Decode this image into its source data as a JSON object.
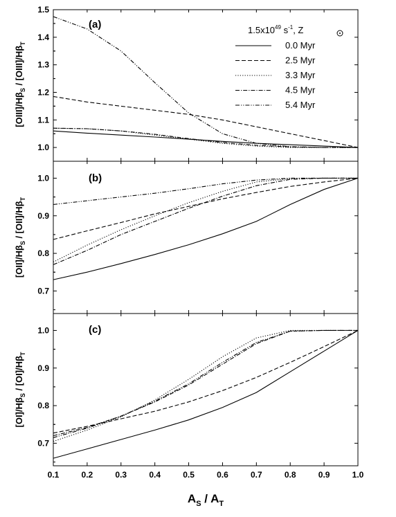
{
  "chart_data": [
    {
      "type": "line",
      "panel_label": "(a)",
      "ylabel": "[OIII]/Hβ_S / [OIII]/Hβ_T",
      "ylim": [
        0.95,
        1.5
      ],
      "yticks": [
        "1.0",
        "1.1",
        "1.2",
        "1.3",
        "1.4",
        "1.5"
      ],
      "legend": {
        "title_plain": "1.5x10^49 s^-1, Z⊙",
        "title_main": "1.5x10",
        "title_exp1": "49",
        "title_s": " s",
        "title_exp2": "-1",
        "title_z": ",  Z",
        "placement": "top-right"
      },
      "series": [
        {
          "name": "0.0 Myr",
          "dash": "solid",
          "x": [
            0.1,
            0.2,
            0.3,
            0.4,
            0.5,
            0.6,
            0.7,
            0.8,
            0.9,
            1.0
          ],
          "y": [
            1.06,
            1.052,
            1.045,
            1.038,
            1.03,
            1.022,
            1.015,
            1.01,
            1.005,
            1.0
          ]
        },
        {
          "name": "2.5 Myr",
          "dash": "dash",
          "x": [
            0.1,
            0.2,
            0.3,
            0.4,
            0.5,
            0.6,
            0.7,
            0.8,
            0.9,
            1.0
          ],
          "y": [
            1.185,
            1.165,
            1.15,
            1.135,
            1.12,
            1.1,
            1.075,
            1.05,
            1.025,
            1.0
          ]
        },
        {
          "name": "3.3 Myr",
          "dash": "dot",
          "x": [
            0.1,
            0.2,
            0.3,
            0.4,
            0.5,
            0.6,
            0.7,
            0.8,
            0.9,
            1.0
          ],
          "y": [
            1.07,
            1.068,
            1.06,
            1.045,
            1.03,
            1.015,
            1.005,
            1.0,
            1.0,
            1.0
          ]
        },
        {
          "name": "4.5 Myr",
          "dash": "dashdot",
          "x": [
            0.1,
            0.2,
            0.3,
            0.4,
            0.5,
            0.6,
            0.7,
            0.8,
            0.9,
            1.0
          ],
          "y": [
            1.07,
            1.068,
            1.06,
            1.048,
            1.032,
            1.018,
            1.008,
            1.002,
            1.0,
            1.0
          ]
        },
        {
          "name": "5.4 Myr",
          "dash": "dashdotdot",
          "x": [
            0.1,
            0.2,
            0.3,
            0.4,
            0.5,
            0.6,
            0.7,
            0.8,
            0.9,
            1.0
          ],
          "y": [
            1.475,
            1.43,
            1.35,
            1.235,
            1.125,
            1.05,
            1.015,
            1.003,
            1.0,
            1.0
          ]
        }
      ]
    },
    {
      "type": "line",
      "panel_label": "(b)",
      "ylabel": "[OII]/Hβ_S / [OII]/Hβ_T",
      "ylim": [
        0.64,
        1.045
      ],
      "yticks": [
        "0.7",
        "0.8",
        "0.9",
        "1.0"
      ],
      "series": [
        {
          "name": "0.0 Myr",
          "dash": "solid",
          "x": [
            0.1,
            0.2,
            0.3,
            0.4,
            0.5,
            0.6,
            0.7,
            0.8,
            0.9,
            1.0
          ],
          "y": [
            0.73,
            0.75,
            0.773,
            0.797,
            0.823,
            0.852,
            0.885,
            0.93,
            0.97,
            1.0
          ]
        },
        {
          "name": "2.5 Myr",
          "dash": "dash",
          "x": [
            0.1,
            0.2,
            0.3,
            0.4,
            0.5,
            0.6,
            0.7,
            0.8,
            0.9,
            1.0
          ],
          "y": [
            0.837,
            0.86,
            0.882,
            0.905,
            0.925,
            0.945,
            0.962,
            0.978,
            0.99,
            1.0
          ]
        },
        {
          "name": "3.3 Myr",
          "dash": "dot",
          "x": [
            0.1,
            0.2,
            0.3,
            0.4,
            0.5,
            0.6,
            0.7,
            0.8,
            0.9,
            1.0
          ],
          "y": [
            0.777,
            0.822,
            0.863,
            0.9,
            0.935,
            0.965,
            0.99,
            0.999,
            1.0,
            1.0
          ]
        },
        {
          "name": "4.5 Myr",
          "dash": "dashdot",
          "x": [
            0.1,
            0.2,
            0.3,
            0.4,
            0.5,
            0.6,
            0.7,
            0.8,
            0.9,
            1.0
          ],
          "y": [
            0.77,
            0.808,
            0.85,
            0.885,
            0.92,
            0.952,
            0.98,
            0.997,
            1.0,
            1.0
          ]
        },
        {
          "name": "5.4 Myr",
          "dash": "dashdotdot",
          "x": [
            0.1,
            0.2,
            0.3,
            0.4,
            0.5,
            0.6,
            0.7,
            0.8,
            0.9,
            1.0
          ],
          "y": [
            0.93,
            0.94,
            0.95,
            0.96,
            0.972,
            0.985,
            0.995,
            1.0,
            1.0,
            1.0
          ]
        }
      ]
    },
    {
      "type": "line",
      "panel_label": "(c)",
      "ylabel": "[OI]/Hβ_S / [OI]/Hβ_T",
      "ylim": [
        0.64,
        1.045
      ],
      "yticks": [
        "0.7",
        "0.8",
        "0.9",
        "1.0"
      ],
      "series": [
        {
          "name": "0.0 Myr",
          "dash": "solid",
          "x": [
            0.1,
            0.2,
            0.3,
            0.4,
            0.5,
            0.6,
            0.7,
            0.8,
            0.9,
            1.0
          ],
          "y": [
            0.66,
            0.685,
            0.71,
            0.735,
            0.762,
            0.795,
            0.835,
            0.89,
            0.945,
            1.0
          ]
        },
        {
          "name": "2.5 Myr",
          "dash": "dash",
          "x": [
            0.1,
            0.2,
            0.3,
            0.4,
            0.5,
            0.6,
            0.7,
            0.8,
            0.9,
            1.0
          ],
          "y": [
            0.727,
            0.745,
            0.765,
            0.785,
            0.81,
            0.84,
            0.875,
            0.915,
            0.957,
            1.0
          ]
        },
        {
          "name": "3.3 Myr",
          "dash": "dot",
          "x": [
            0.1,
            0.2,
            0.3,
            0.4,
            0.5,
            0.6,
            0.7,
            0.8,
            0.9,
            1.0
          ],
          "y": [
            0.705,
            0.735,
            0.77,
            0.815,
            0.87,
            0.93,
            0.98,
            1.0,
            1.0,
            1.0
          ]
        },
        {
          "name": "4.5 Myr",
          "dash": "dashdot",
          "x": [
            0.1,
            0.2,
            0.3,
            0.4,
            0.5,
            0.6,
            0.7,
            0.8,
            0.9,
            1.0
          ],
          "y": [
            0.72,
            0.742,
            0.772,
            0.81,
            0.855,
            0.91,
            0.965,
            0.998,
            1.0,
            1.0
          ]
        },
        {
          "name": "5.4 Myr",
          "dash": "dashdotdot",
          "x": [
            0.1,
            0.2,
            0.3,
            0.4,
            0.5,
            0.6,
            0.7,
            0.8,
            0.9,
            1.0
          ],
          "y": [
            0.715,
            0.74,
            0.772,
            0.812,
            0.858,
            0.915,
            0.968,
            0.998,
            1.0,
            1.0
          ]
        }
      ]
    }
  ],
  "shared_x": {
    "xlim": [
      0.1,
      1.0
    ],
    "xticks": [
      "0.1",
      "0.2",
      "0.3",
      "0.4",
      "0.5",
      "0.6",
      "0.7",
      "0.8",
      "0.9",
      "1.0"
    ],
    "xlabel_plain": "A_S / A_T",
    "xlabel_A1": "A",
    "xlabel_sub1": "S",
    "xlabel_slash": " / A",
    "xlabel_sub2": "T"
  },
  "ylabel_parts": [
    {
      "pre": "[OIII]/Hβ",
      "sub1": "S",
      "mid": " / [OIII]/Hβ",
      "sub2": "T"
    },
    {
      "pre": "[OII]/Hβ",
      "sub1": "S",
      "mid": " / [OII]/Hβ",
      "sub2": "T"
    },
    {
      "pre": "[OI]/Hβ",
      "sub1": "S",
      "mid": " / [OI]/Hβ",
      "sub2": "T"
    }
  ],
  "colors": {
    "line": "#000000",
    "background": "#ffffff"
  }
}
